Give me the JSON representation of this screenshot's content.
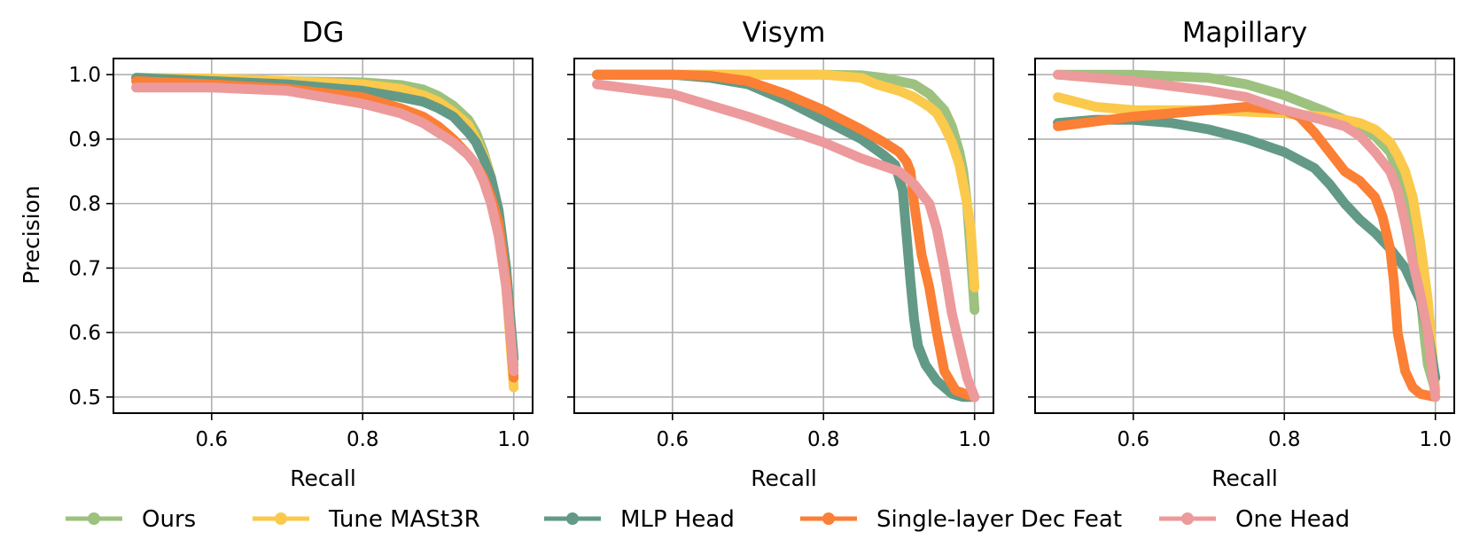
{
  "chart_data": {
    "type": "line",
    "ylabel": "Precision",
    "xlabel": "Recall",
    "xlim": [
      0.47,
      1.025
    ],
    "ylim": [
      0.475,
      1.025
    ],
    "xticks": [
      0.6,
      0.8,
      1.0
    ],
    "xtick_labels": [
      "0.6",
      "0.8",
      "1.0"
    ],
    "yticks": [
      0.5,
      0.6,
      0.7,
      0.8,
      0.9,
      1.0
    ],
    "ytick_labels": [
      "0.5",
      "0.6",
      "0.7",
      "0.8",
      "0.9",
      "1.0"
    ],
    "grid": true,
    "legend_position": "bottom",
    "series_styles": [
      {
        "name": "Ours",
        "color": "#9dc17f"
      },
      {
        "name": "Tune MASt3R",
        "color": "#fbc94b"
      },
      {
        "name": "MLP Head",
        "color": "#629a87"
      },
      {
        "name": "Single-layer Dec Feat",
        "color": "#fb7f34"
      },
      {
        "name": "One Head",
        "color": "#ec9a9b"
      }
    ],
    "panels": [
      {
        "title": "DG",
        "series": [
          {
            "name": "Ours",
            "x": [
              0.5,
              0.6,
              0.7,
              0.8,
              0.85,
              0.88,
              0.9,
              0.92,
              0.94,
              0.95,
              0.96,
              0.97,
              0.98,
              0.99,
              1.0
            ],
            "y": [
              0.995,
              0.993,
              0.99,
              0.988,
              0.984,
              0.977,
              0.967,
              0.952,
              0.93,
              0.91,
              0.88,
              0.84,
              0.78,
              0.68,
              0.55
            ]
          },
          {
            "name": "Tune MASt3R",
            "x": [
              0.5,
              0.6,
              0.7,
              0.8,
              0.85,
              0.88,
              0.9,
              0.92,
              0.94,
              0.95,
              0.96,
              0.97,
              0.98,
              0.99,
              1.0
            ],
            "y": [
              0.995,
              0.994,
              0.99,
              0.985,
              0.978,
              0.968,
              0.958,
              0.942,
              0.922,
              0.9,
              0.875,
              0.84,
              0.78,
              0.67,
              0.515
            ]
          },
          {
            "name": "MLP Head",
            "x": [
              0.5,
              0.6,
              0.7,
              0.8,
              0.85,
              0.88,
              0.9,
              0.92,
              0.94,
              0.95,
              0.96,
              0.97,
              0.98,
              0.99,
              1.0
            ],
            "y": [
              0.995,
              0.99,
              0.985,
              0.975,
              0.965,
              0.958,
              0.948,
              0.935,
              0.91,
              0.895,
              0.87,
              0.84,
              0.79,
              0.7,
              0.56
            ]
          },
          {
            "name": "Single-layer Dec Feat",
            "x": [
              0.5,
              0.6,
              0.7,
              0.8,
              0.85,
              0.88,
              0.9,
              0.92,
              0.94,
              0.95,
              0.96,
              0.97,
              0.98,
              0.99,
              1.0
            ],
            "y": [
              0.99,
              0.985,
              0.978,
              0.965,
              0.948,
              0.935,
              0.92,
              0.9,
              0.875,
              0.86,
              0.84,
              0.81,
              0.77,
              0.68,
              0.53
            ]
          },
          {
            "name": "One Head",
            "x": [
              0.5,
              0.6,
              0.7,
              0.8,
              0.85,
              0.88,
              0.9,
              0.92,
              0.94,
              0.95,
              0.96,
              0.97,
              0.98,
              0.99,
              1.0
            ],
            "y": [
              0.98,
              0.98,
              0.975,
              0.955,
              0.94,
              0.925,
              0.91,
              0.895,
              0.875,
              0.86,
              0.835,
              0.8,
              0.75,
              0.67,
              0.54
            ]
          }
        ]
      },
      {
        "title": "Visym",
        "series": [
          {
            "name": "Ours",
            "x": [
              0.5,
              0.6,
              0.7,
              0.8,
              0.85,
              0.88,
              0.9,
              0.92,
              0.94,
              0.96,
              0.97,
              0.98,
              0.985,
              0.99,
              0.995,
              1.0
            ],
            "y": [
              1.0,
              1.0,
              1.0,
              1.0,
              0.999,
              0.995,
              0.99,
              0.985,
              0.97,
              0.945,
              0.92,
              0.88,
              0.85,
              0.8,
              0.72,
              0.635
            ]
          },
          {
            "name": "Tune MASt3R",
            "x": [
              0.5,
              0.6,
              0.7,
              0.8,
              0.85,
              0.87,
              0.9,
              0.92,
              0.94,
              0.95,
              0.96,
              0.97,
              0.98,
              0.99,
              0.995,
              1.0
            ],
            "y": [
              1.0,
              1.0,
              1.0,
              1.0,
              0.995,
              0.985,
              0.975,
              0.965,
              0.95,
              0.94,
              0.92,
              0.895,
              0.86,
              0.8,
              0.76,
              0.67
            ]
          },
          {
            "name": "MLP Head",
            "x": [
              0.5,
              0.6,
              0.65,
              0.7,
              0.75,
              0.8,
              0.85,
              0.88,
              0.895,
              0.905,
              0.91,
              0.915,
              0.92,
              0.925,
              0.935,
              0.95,
              0.97,
              0.985,
              1.0
            ],
            "y": [
              1.0,
              1.0,
              0.995,
              0.985,
              0.96,
              0.93,
              0.9,
              0.875,
              0.86,
              0.82,
              0.75,
              0.68,
              0.62,
              0.58,
              0.55,
              0.525,
              0.505,
              0.5,
              0.5
            ]
          },
          {
            "name": "Single-layer Dec Feat",
            "x": [
              0.5,
              0.6,
              0.65,
              0.7,
              0.75,
              0.8,
              0.85,
              0.88,
              0.9,
              0.91,
              0.915,
              0.92,
              0.93,
              0.94,
              0.95,
              0.96,
              0.975,
              1.0
            ],
            "y": [
              1.0,
              1.0,
              0.998,
              0.99,
              0.97,
              0.945,
              0.915,
              0.895,
              0.88,
              0.865,
              0.85,
              0.8,
              0.72,
              0.67,
              0.6,
              0.54,
              0.51,
              0.5
            ]
          },
          {
            "name": "One Head",
            "x": [
              0.5,
              0.6,
              0.7,
              0.75,
              0.8,
              0.85,
              0.9,
              0.92,
              0.94,
              0.95,
              0.96,
              0.97,
              0.98,
              0.99,
              1.0
            ],
            "y": [
              0.985,
              0.97,
              0.935,
              0.915,
              0.895,
              0.87,
              0.85,
              0.83,
              0.8,
              0.76,
              0.7,
              0.63,
              0.58,
              0.53,
              0.5
            ]
          }
        ]
      },
      {
        "title": "Mapillary",
        "series": [
          {
            "name": "Ours",
            "x": [
              0.5,
              0.6,
              0.7,
              0.75,
              0.8,
              0.85,
              0.88,
              0.9,
              0.92,
              0.94,
              0.95,
              0.96,
              0.97,
              0.98,
              0.985,
              0.99,
              1.0
            ],
            "y": [
              1.0,
              1.0,
              0.995,
              0.985,
              0.968,
              0.945,
              0.93,
              0.92,
              0.905,
              0.88,
              0.85,
              0.8,
              0.74,
              0.66,
              0.6,
              0.55,
              0.51
            ]
          },
          {
            "name": "Tune MASt3R",
            "x": [
              0.5,
              0.55,
              0.6,
              0.7,
              0.8,
              0.85,
              0.88,
              0.9,
              0.92,
              0.94,
              0.95,
              0.96,
              0.97,
              0.98,
              0.99,
              1.0
            ],
            "y": [
              0.965,
              0.95,
              0.945,
              0.945,
              0.94,
              0.935,
              0.93,
              0.925,
              0.915,
              0.895,
              0.875,
              0.85,
              0.81,
              0.74,
              0.65,
              0.51
            ]
          },
          {
            "name": "MLP Head",
            "x": [
              0.5,
              0.55,
              0.6,
              0.65,
              0.7,
              0.75,
              0.8,
              0.84,
              0.86,
              0.88,
              0.9,
              0.92,
              0.94,
              0.96,
              0.98,
              0.99,
              1.0
            ],
            "y": [
              0.925,
              0.93,
              0.93,
              0.925,
              0.915,
              0.9,
              0.88,
              0.855,
              0.83,
              0.8,
              0.775,
              0.755,
              0.73,
              0.7,
              0.65,
              0.6,
              0.53
            ]
          },
          {
            "name": "Single-layer Dec Feat",
            "x": [
              0.5,
              0.6,
              0.7,
              0.75,
              0.8,
              0.82,
              0.84,
              0.86,
              0.88,
              0.9,
              0.92,
              0.93,
              0.94,
              0.945,
              0.95,
              0.96,
              0.97,
              0.98,
              1.0
            ],
            "y": [
              0.92,
              0.935,
              0.945,
              0.95,
              0.945,
              0.935,
              0.91,
              0.88,
              0.85,
              0.835,
              0.81,
              0.78,
              0.73,
              0.68,
              0.6,
              0.54,
              0.515,
              0.505,
              0.5
            ]
          },
          {
            "name": "One Head",
            "x": [
              0.5,
              0.6,
              0.7,
              0.75,
              0.8,
              0.85,
              0.88,
              0.9,
              0.92,
              0.94,
              0.95,
              0.96,
              0.97,
              0.98,
              0.99,
              1.0
            ],
            "y": [
              1.0,
              0.99,
              0.975,
              0.965,
              0.945,
              0.93,
              0.92,
              0.905,
              0.88,
              0.85,
              0.82,
              0.77,
              0.71,
              0.66,
              0.6,
              0.5
            ]
          }
        ]
      }
    ]
  }
}
